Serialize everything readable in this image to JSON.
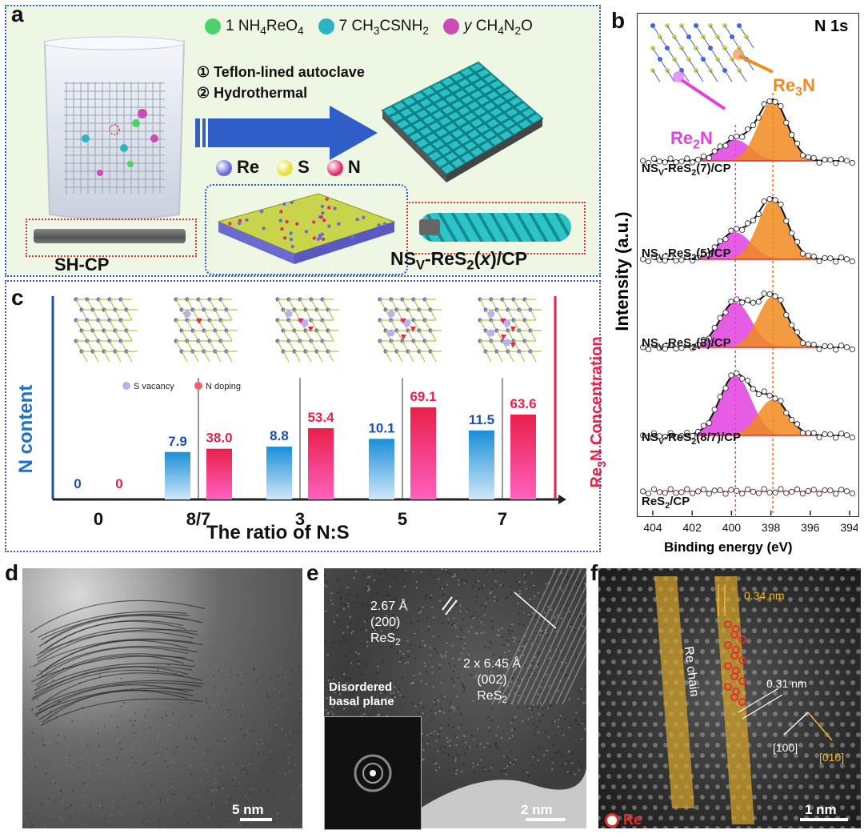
{
  "panel_a": {
    "label": "a",
    "legend": [
      {
        "coef": "1",
        "formula_html": "NH<span class='sub'>4</span>ReO<span class='sub'>4</span>",
        "color": "#4bd06a"
      },
      {
        "coef": "7",
        "formula_html": "CH<span class='sub'>3</span>CSNH<span class='sub'>2</span>",
        "color": "#2db3c4"
      },
      {
        "coef": "y",
        "formula_html": "CH<span class='sub'>4</span>N<span class='sub'>2</span>O",
        "color": "#c94bb6"
      }
    ],
    "step1": "① Teflon-lined autoclave",
    "step2": "② Hydrothermal",
    "atoms": [
      {
        "name": "Re",
        "color": "#6a6ae0"
      },
      {
        "name": "S",
        "color": "#e8e03a"
      },
      {
        "name": "N",
        "color": "#e0306a"
      }
    ],
    "left_caption": "SH-CP",
    "right_caption_html": "NS<span class='sub'>V</span>-ReS<span class='sub'>2</span>(<i>x</i>)/CP"
  },
  "panel_b": {
    "label": "b",
    "title": "N 1s",
    "ylabel": "Intensity (a.u.)",
    "xlabel": "Binding energy (eV)",
    "xticks": [
      "404",
      "402",
      "400",
      "398",
      "396",
      "394"
    ],
    "re2n_label_html": "Re<span class='sub'>2</span>N",
    "re3n_label_html": "Re<span class='sub'>3</span>N",
    "re2n_color": "#e040e0",
    "re3n_color": "#f08a1e",
    "spectra": [
      {
        "label_html": "NS<span class='sub'>V</span>-ReS<span class='sub'>2</span>(7)/CP",
        "re2n": 0.35,
        "re3n": 1.0
      },
      {
        "label_html": "NS<span class='sub'>V</span>-ReS<span class='sub'>2</span>(5)/CP",
        "re2n": 0.45,
        "re3n": 1.0
      },
      {
        "label_html": "NS<span class='sub'>V</span>-ReS<span class='sub'>2</span>(3)/CP",
        "re2n": 0.75,
        "re3n": 0.85
      },
      {
        "label_html": "NS<span class='sub'>V</span>-ReS<span class='sub'>2</span>(8/7)/CP",
        "re2n": 1.0,
        "re3n": 0.6
      },
      {
        "label_html": "ReS<span class='sub'>2</span>/CP",
        "re2n": 0.0,
        "re3n": 0.0
      }
    ]
  },
  "chart_data": {
    "type": "bar",
    "categories": [
      "0",
      "8/7",
      "3",
      "5",
      "7"
    ],
    "xlabel": "The ratio of N:S",
    "ylabel_left": "N content",
    "ylabel_right_html": "Re<span class='sub'>3</span>N Concentration",
    "series": [
      {
        "values": [
          0,
          7.9,
          8.8,
          10.1,
          11.5
        ],
        "color": "#1a8fd8"
      },
      {
        "values": [
          0,
          38.0,
          53.4,
          69.1,
          63.6
        ],
        "color": "#e8204a"
      }
    ],
    "value_labels_n": [
      "0",
      "7.9",
      "8.8",
      "10.1",
      "11.5"
    ],
    "value_labels_re3n": [
      "0",
      "38.0",
      "53.4",
      "69.1",
      "63.6"
    ],
    "legend": [
      {
        "name": "S vacancy",
        "color": "#b8b0f0"
      },
      {
        "name": "N doping",
        "color": "#f06070"
      }
    ]
  },
  "panel_c": {
    "label": "c"
  },
  "panel_d": {
    "label": "d",
    "scale": "5 nm"
  },
  "panel_e": {
    "label": "e",
    "ann1_line1": "2.67 Å",
    "ann1_line2": "(200)",
    "ann1_line3_html": "ReS<span class='sub'>2</span>",
    "ann2_line1": "2 x 6.45 Å",
    "ann2_line2": "(002)",
    "ann2_line3_html": "ReS<span class='sub'>2</span>",
    "disordered": "Disordered basal plane",
    "scale": "2 nm"
  },
  "panel_f": {
    "label": "f",
    "re_chain": "Re chain",
    "d1": "0.34 nm",
    "d2": "0.31 nm",
    "dir1": "[100]",
    "dir2": "[010]",
    "legend": "Re",
    "scale": "1 nm"
  }
}
